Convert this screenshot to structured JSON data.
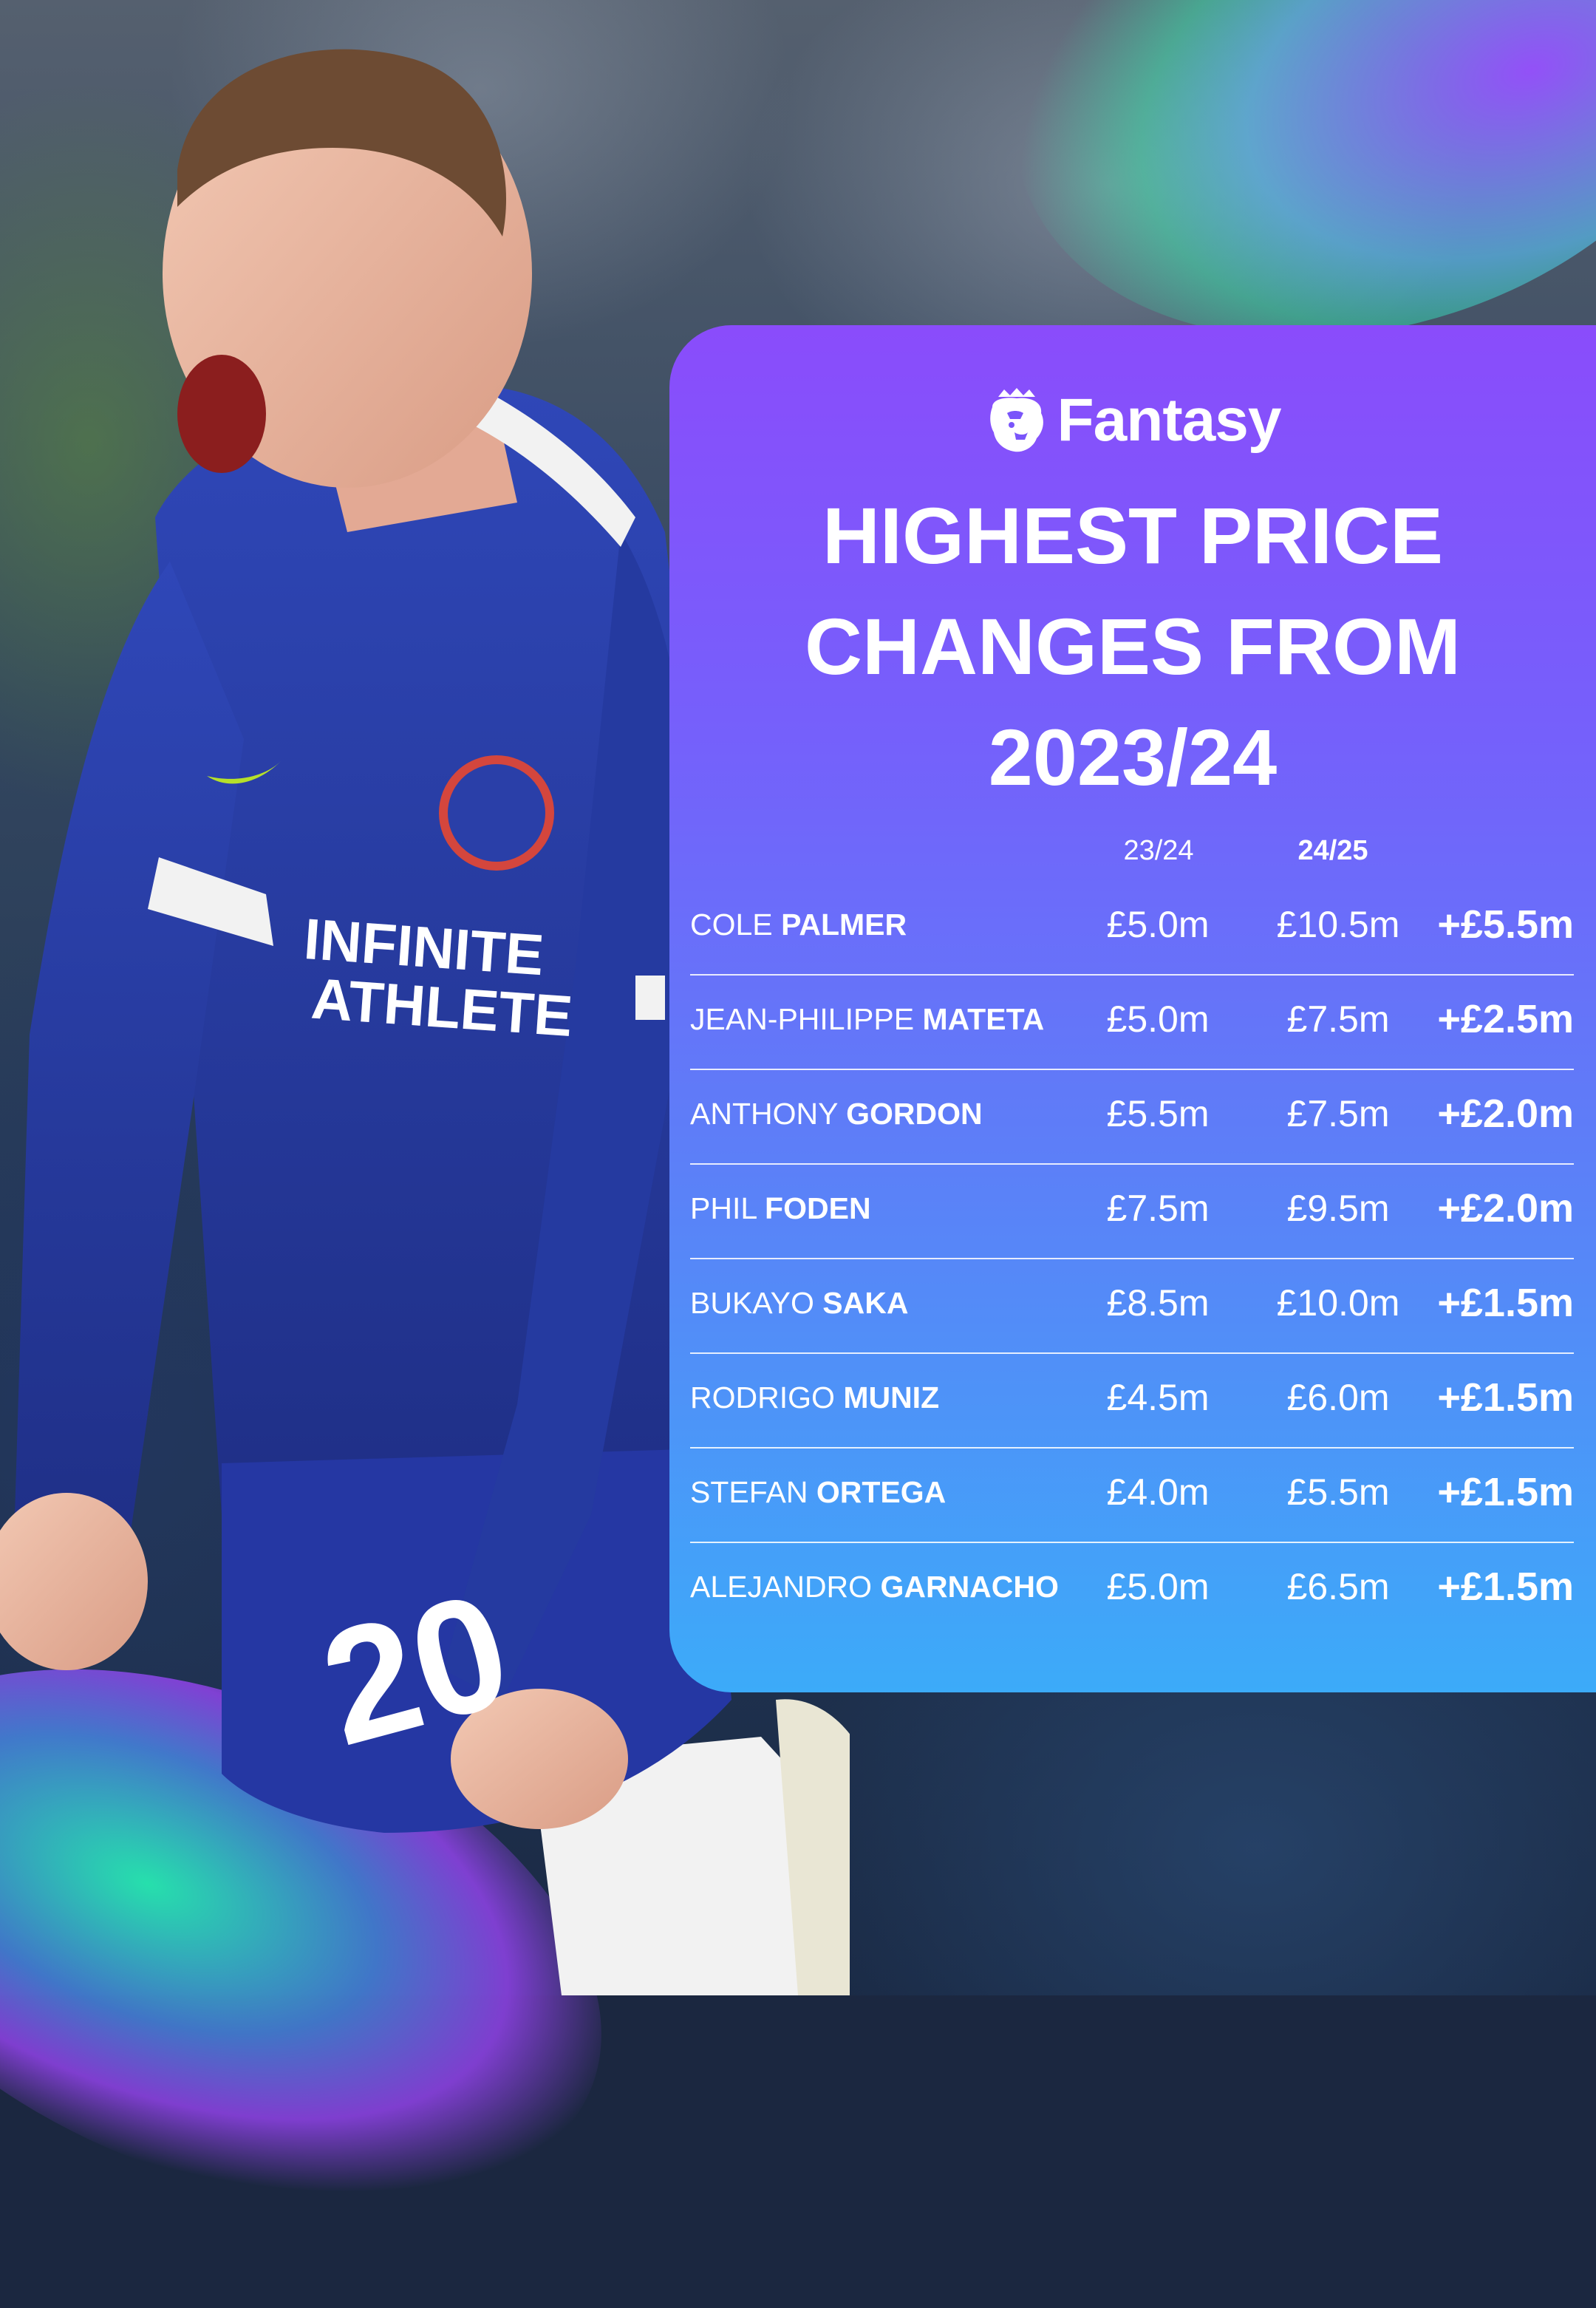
{
  "brand": {
    "name": "Fantasy",
    "logo_icon": "premier-league-lion-icon"
  },
  "headline": [
    "HIGHEST PRICE",
    "CHANGES FROM",
    "2023/24"
  ],
  "columns": {
    "prev": "23/24",
    "curr": "24/25"
  },
  "players": [
    {
      "first": "COLE",
      "last": "PALMER",
      "prev": "£5.0m",
      "curr": "£10.5m",
      "diff": "+£5.5m"
    },
    {
      "first": "JEAN-PHILIPPE",
      "last": "MATETA",
      "prev": "£5.0m",
      "curr": "£7.5m",
      "diff": "+£2.5m"
    },
    {
      "first": "ANTHONY",
      "last": "GORDON",
      "prev": "£5.5m",
      "curr": "£7.5m",
      "diff": "+£2.0m"
    },
    {
      "first": "PHIL",
      "last": "FODEN",
      "prev": "£7.5m",
      "curr": "£9.5m",
      "diff": "+£2.0m"
    },
    {
      "first": "BUKAYO",
      "last": "SAKA",
      "prev": "£8.5m",
      "curr": "£10.0m",
      "diff": "+£1.5m"
    },
    {
      "first": "RODRIGO",
      "last": "MUNIZ",
      "prev": "£4.5m",
      "curr": "£6.0m",
      "diff": "+£1.5m"
    },
    {
      "first": "STEFAN",
      "last": "ORTEGA",
      "prev": "£4.0m",
      "curr": "£5.5m",
      "diff": "+£1.5m"
    },
    {
      "first": "ALEJANDRO",
      "last": "GARNACHO",
      "prev": "£5.0m",
      "curr": "£6.5m",
      "diff": "+£1.5m"
    }
  ],
  "photo": {
    "shirt_sponsor": [
      "INFINITE",
      "ATHLETE"
    ],
    "shirt_number": "20"
  },
  "colors": {
    "card_top": "#8a4cfb",
    "card_bottom": "#3cabf9",
    "kit_blue": "#2a3fa8"
  }
}
